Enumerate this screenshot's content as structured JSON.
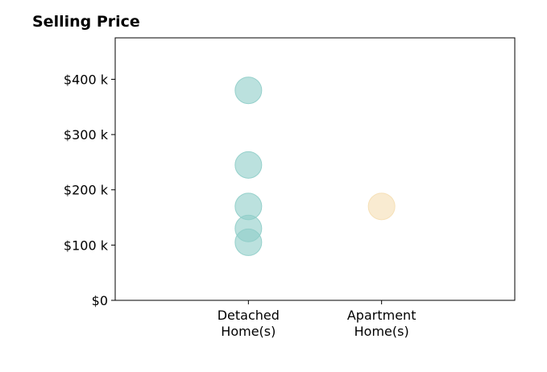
{
  "chart_data": {
    "type": "scatter",
    "title": "Selling Price",
    "xlabel": "",
    "ylabel": "",
    "categories": [
      "Detached\nHome(s)",
      "Apartment\nHome(s)"
    ],
    "y_ticks": [
      0,
      100000,
      200000,
      300000,
      400000
    ],
    "y_tick_labels": [
      "$0",
      "$100 k",
      "$200 k",
      "$300 k",
      "$400 k"
    ],
    "ylim": [
      0,
      475000
    ],
    "grid": false,
    "series": [
      {
        "category": "Detached\nHome(s)",
        "color": "#8ecdc8",
        "values": [
          380000,
          245000,
          170000,
          130000,
          105000
        ]
      },
      {
        "category": "Apartment\nHome(s)",
        "color": "#f5deb3",
        "values": [
          170000
        ]
      }
    ]
  }
}
